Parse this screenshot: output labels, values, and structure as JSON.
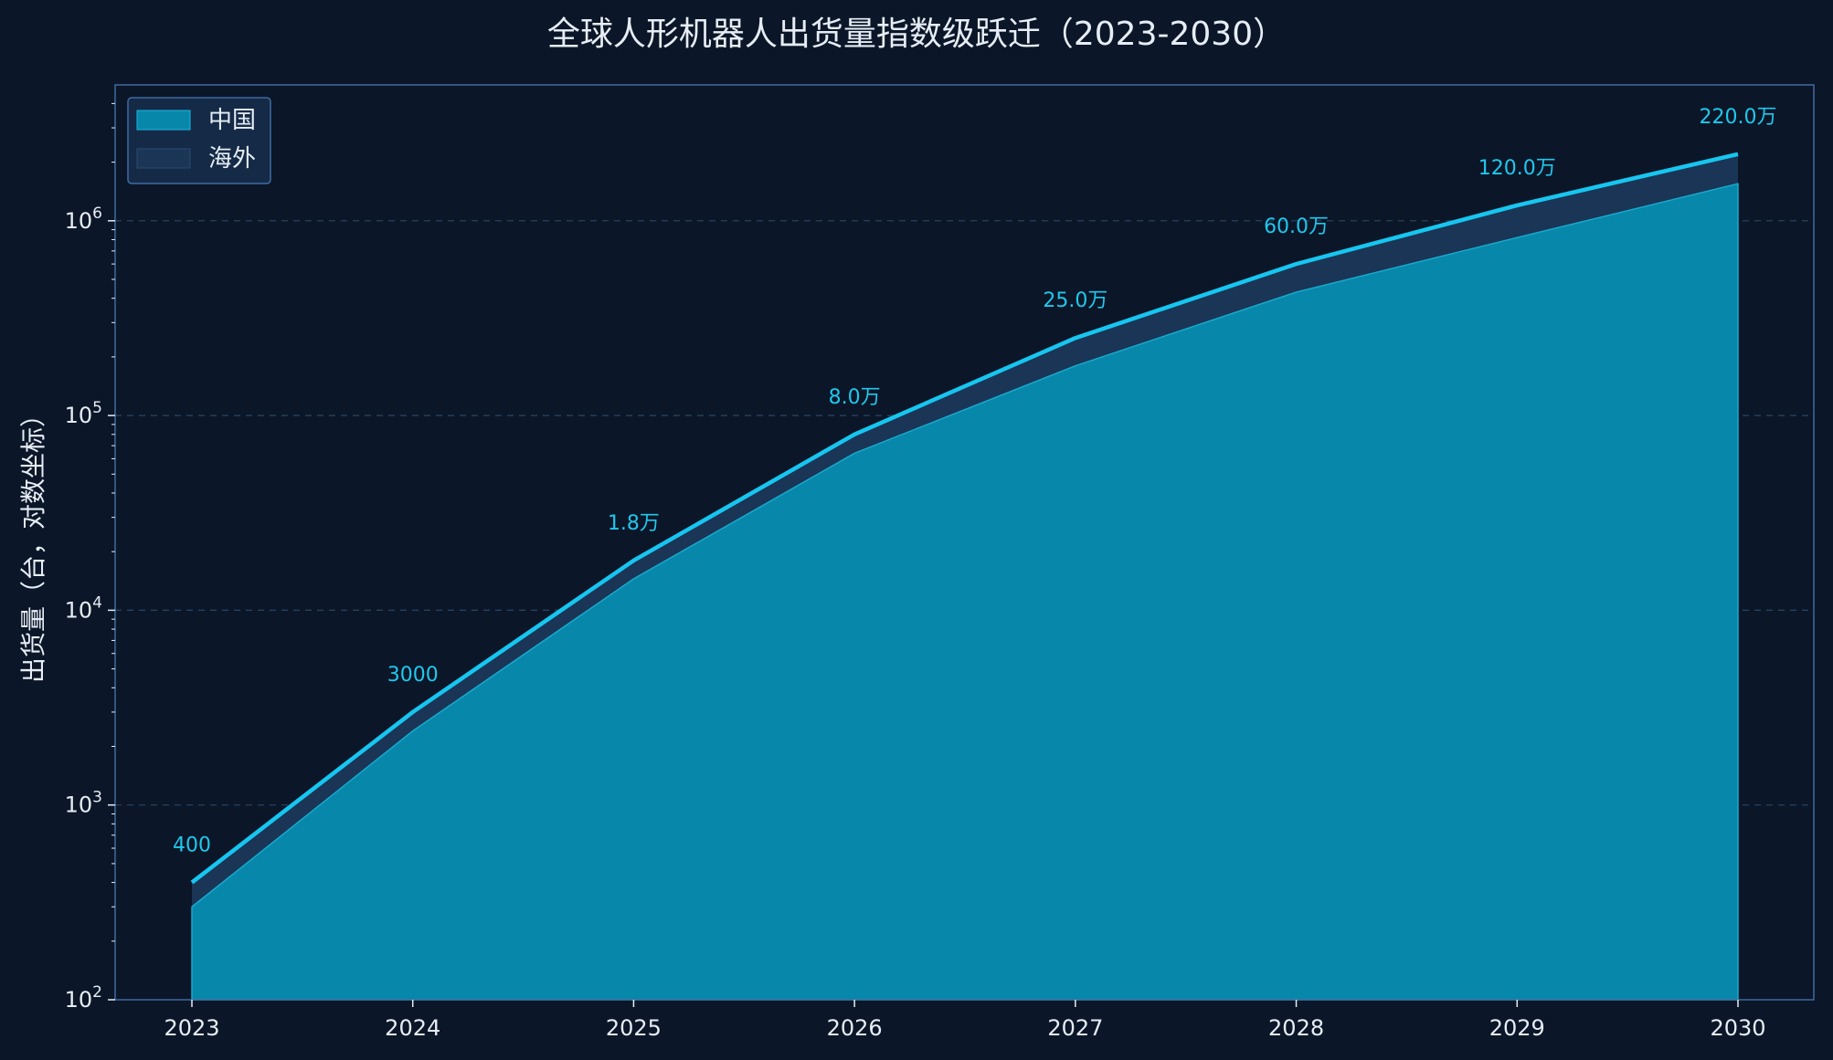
{
  "chart_data": {
    "type": "area",
    "title": "全球人形机器人出货量指数级跃迁（2023-2030）",
    "xlabel": "",
    "ylabel": "出货量（台，对数坐标）",
    "y_scale": "log",
    "ylim": [
      100,
      5000000
    ],
    "x": [
      "2023",
      "2024",
      "2025",
      "2026",
      "2027",
      "2028",
      "2029",
      "2030"
    ],
    "stacked": true,
    "series": [
      {
        "name": "中国",
        "color": "#0788aa",
        "values": [
          300,
          2400,
          14500,
          64000,
          180000,
          430000,
          820000,
          1550000
        ]
      },
      {
        "name": "海外",
        "color": "#1a3556",
        "values": [
          100,
          600,
          3500,
          16000,
          70000,
          170000,
          380000,
          650000
        ]
      }
    ],
    "total_line": {
      "color": "#16c6f0",
      "values": [
        400,
        3000,
        18000,
        80000,
        250000,
        600000,
        1200000,
        2200000
      ]
    },
    "data_labels": [
      "400",
      "3000",
      "1.8万",
      "8.0万",
      "25.0万",
      "60.0万",
      "120.0万",
      "220.0万"
    ],
    "y_ticks": [
      {
        "value": 100,
        "base": "10",
        "exp": "2"
      },
      {
        "value": 1000,
        "base": "10",
        "exp": "3"
      },
      {
        "value": 10000,
        "base": "10",
        "exp": "4"
      },
      {
        "value": 100000,
        "base": "10",
        "exp": "5"
      },
      {
        "value": 1000000,
        "base": "10",
        "exp": "6"
      }
    ],
    "grid": true,
    "legend_position": "top-left"
  }
}
